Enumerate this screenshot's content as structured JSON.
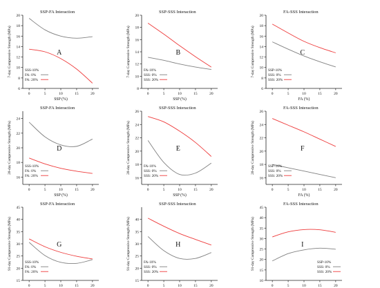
{
  "chart_data": [
    {
      "type": "line",
      "title": "SSP-FA Interaction",
      "panel_letter": "A",
      "xlabel": "SSP (%)",
      "ylabel": "7-day Compressive Strength (MPa)",
      "xlim": [
        -2,
        22
      ],
      "ylim": [
        6,
        20
      ],
      "xticks": [
        0,
        5,
        10,
        15,
        20
      ],
      "yticks": [
        6,
        8,
        10,
        12,
        14,
        16,
        18,
        20
      ],
      "legend_header": "SSS-10%",
      "legend_location": "bottom-left",
      "x": [
        0,
        5,
        10,
        15,
        20
      ],
      "series": [
        {
          "name": "FA: 0%",
          "color": "#808080",
          "values": [
            19.4,
            17.2,
            16.0,
            15.6,
            15.9
          ]
        },
        {
          "name": "FA: 20%",
          "color": "#ee3a3a",
          "values": [
            13.5,
            13.0,
            11.7,
            9.7,
            7.0
          ]
        }
      ]
    },
    {
      "type": "line",
      "title": "SSP-SSS Interaction",
      "panel_letter": "B",
      "xlabel": "SSP (%)",
      "ylabel": "7-day Compressive Strength (MPa)",
      "xlim": [
        -2,
        22
      ],
      "ylim": [
        8,
        20
      ],
      "xticks": [
        0,
        5,
        10,
        15,
        20
      ],
      "yticks": [
        8,
        10,
        12,
        14,
        16,
        18,
        20
      ],
      "legend_header": "FA-10%",
      "legend_location": "bottom-left",
      "x": [
        0,
        5,
        10,
        15,
        20
      ],
      "series": [
        {
          "name": "SSS: 0%",
          "color": "#808080",
          "values": [
            13.1,
            12.6,
            12.0,
            11.5,
            11.1
          ]
        },
        {
          "name": "SSS: 20%",
          "color": "#ee3a3a",
          "values": [
            18.7,
            16.9,
            15.0,
            13.2,
            11.5
          ]
        }
      ]
    },
    {
      "type": "line",
      "title": "FA-SSS Interaction",
      "panel_letter": "C",
      "xlabel": "FA (%)",
      "ylabel": "7-day Compressive Strength (MPa)",
      "xlim": [
        -2,
        22
      ],
      "ylim": [
        6,
        20
      ],
      "xticks": [
        0,
        5,
        10,
        15,
        20
      ],
      "yticks": [
        6,
        8,
        10,
        12,
        14,
        16,
        18,
        20
      ],
      "legend_header": "SSP-10%",
      "legend_location": "bottom-left",
      "x": [
        0,
        5,
        10,
        15,
        20
      ],
      "series": [
        {
          "name": "SSS: 0%",
          "color": "#808080",
          "values": [
            14.9,
            13.5,
            12.2,
            11.1,
            10.1
          ]
        },
        {
          "name": "SSS: 20%",
          "color": "#ee3a3a",
          "values": [
            18.3,
            16.6,
            15.0,
            13.8,
            12.8
          ]
        }
      ]
    },
    {
      "type": "line",
      "title": "SSP-FA Interaction",
      "panel_letter": "D",
      "xlabel": "SSP (%)",
      "ylabel": "28-day Compressive Strength (MPa)",
      "xlim": [
        -2,
        22
      ],
      "ylim": [
        15,
        25
      ],
      "xticks": [
        0,
        5,
        10,
        15,
        20
      ],
      "yticks": [
        16,
        18,
        20,
        22,
        24
      ],
      "legend_header": "SSS-10%",
      "legend_location": "bottom-left",
      "x": [
        0,
        5,
        10,
        15,
        20
      ],
      "series": [
        {
          "name": "FA: 0%",
          "color": "#808080",
          "values": [
            23.5,
            21.5,
            20.4,
            20.2,
            21.2
          ]
        },
        {
          "name": "FA: 20%",
          "color": "#ee3a3a",
          "values": [
            18.6,
            17.8,
            17.2,
            16.8,
            16.5
          ]
        }
      ]
    },
    {
      "type": "line",
      "title": "SSP-SSS Interaction",
      "panel_letter": "E",
      "xlabel": "SSP (%)",
      "ylabel": "28-day Compressive Strength (MPa)",
      "xlim": [
        -2,
        22
      ],
      "ylim": [
        15,
        26
      ],
      "xticks": [
        0,
        5,
        10,
        15,
        20
      ],
      "yticks": [
        16,
        18,
        20,
        22,
        24,
        26
      ],
      "legend_header": "FA-10%",
      "legend_location": "bottom-left",
      "x": [
        0,
        5,
        10,
        15,
        20
      ],
      "series": [
        {
          "name": "SSS: 0%",
          "color": "#808080",
          "values": [
            21.6,
            18.3,
            16.5,
            16.7,
            18.2
          ]
        },
        {
          "name": "SSS: 20%",
          "color": "#ee3a3a",
          "values": [
            25.2,
            24.4,
            23.0,
            21.3,
            19.2
          ]
        }
      ]
    },
    {
      "type": "line",
      "title": "FA-SSS Interaction",
      "panel_letter": "F",
      "xlabel": "FA (%)",
      "ylabel": "28-day Compressive Strength (MPa)",
      "xlim": [
        -2,
        22
      ],
      "ylim": [
        15,
        26
      ],
      "xticks": [
        0,
        5,
        10,
        15,
        20
      ],
      "yticks": [
        16,
        18,
        20,
        22,
        24,
        26
      ],
      "legend_header": "SSP-10%",
      "legend_location": "bottom-left",
      "x": [
        0,
        5,
        10,
        15,
        20
      ],
      "series": [
        {
          "name": "SSS: 0%",
          "color": "#808080",
          "values": [
            18.0,
            17.5,
            17.0,
            16.5,
            16.0
          ]
        },
        {
          "name": "SSS: 20%",
          "color": "#ee3a3a",
          "values": [
            24.9,
            23.9,
            22.9,
            21.8,
            20.7
          ]
        }
      ]
    },
    {
      "type": "line",
      "title": "SSP-FA Interaction",
      "panel_letter": "G",
      "xlabel": "SSP (%)",
      "ylabel": "91-day Compressive Strength (MPa)",
      "xlim": [
        -2,
        22
      ],
      "ylim": [
        15,
        45
      ],
      "xticks": [
        0,
        5,
        10,
        15,
        20
      ],
      "yticks": [
        15,
        20,
        25,
        30,
        35,
        40,
        45
      ],
      "legend_header": "SSS-10%",
      "legend_location": "bottom-left",
      "x": [
        0,
        5,
        10,
        15,
        20
      ],
      "series": [
        {
          "name": "FA: 0%",
          "color": "#808080",
          "values": [
            30.6,
            25.2,
            22.4,
            22.0,
            23.5
          ]
        },
        {
          "name": "FA: 20%",
          "color": "#ee3a3a",
          "values": [
            32.0,
            28.8,
            26.5,
            24.9,
            23.8
          ]
        }
      ]
    },
    {
      "type": "line",
      "title": "SSP-SSS Interaction",
      "panel_letter": "H",
      "xlabel": "SSP (%)",
      "ylabel": "91-day Compressive Strength (MPa)",
      "xlim": [
        -2,
        22
      ],
      "ylim": [
        15,
        45
      ],
      "xticks": [
        0,
        5,
        10,
        15,
        20
      ],
      "yticks": [
        15,
        20,
        25,
        30,
        35,
        40
      ],
      "legend_header": "FA-10%",
      "legend_location": "bottom-left",
      "x": [
        0,
        5,
        10,
        15,
        20
      ],
      "series": [
        {
          "name": "SSS: 0%",
          "color": "#808080",
          "values": [
            33.0,
            27.2,
            24.0,
            24.0,
            26.4
          ]
        },
        {
          "name": "SSS: 20%",
          "color": "#ee3a3a",
          "values": [
            40.5,
            37.2,
            34.2,
            31.8,
            29.5
          ]
        }
      ]
    },
    {
      "type": "line",
      "title": "FA-SSS Interaction",
      "panel_letter": "I",
      "xlabel": "FA (%)",
      "ylabel": "91-day Compressive Strength (MPa)",
      "xlim": [
        -2,
        22
      ],
      "ylim": [
        10,
        45
      ],
      "xticks": [
        0,
        5,
        10,
        15,
        20
      ],
      "yticks": [
        10,
        15,
        20,
        25,
        30,
        35,
        40,
        45
      ],
      "legend_header": "SSP-10%",
      "legend_location": "bottom-right",
      "x": [
        0,
        5,
        10,
        15,
        20
      ],
      "series": [
        {
          "name": "SSS: 0%",
          "color": "#808080",
          "values": [
            19.3,
            22.8,
            24.6,
            25.4,
            24.9
          ]
        },
        {
          "name": "SSS: 20%",
          "color": "#ee3a3a",
          "values": [
            30.8,
            33.2,
            34.3,
            34.2,
            33.0
          ]
        }
      ]
    }
  ]
}
